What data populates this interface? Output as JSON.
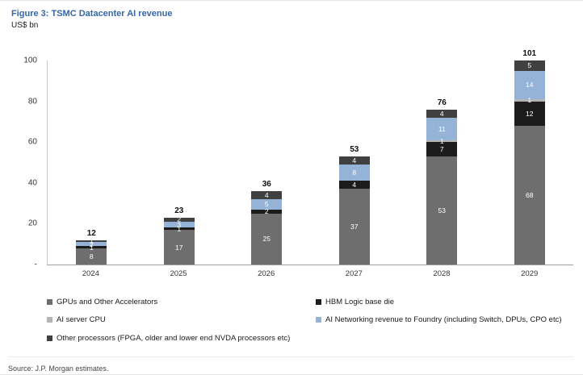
{
  "figure": {
    "title": "Figure 3: TSMC Datacenter AI revenue",
    "subtitle": "US$ bn",
    "source": "Source: J.P. Morgan estimates."
  },
  "chart_data": {
    "type": "bar",
    "stacked": true,
    "title": "Figure 3: TSMC Datacenter AI revenue",
    "ylabel": "US$ bn",
    "xlabel": "",
    "ylim": [
      0,
      100
    ],
    "grid": false,
    "legend_position": "bottom",
    "categories": [
      "2024",
      "2025",
      "2026",
      "2027",
      "2028",
      "2029"
    ],
    "series": [
      {
        "name": "GPUs and Other Accelerators",
        "color": "#6e6e6e",
        "values": [
          8,
          17,
          25,
          37,
          53,
          68
        ]
      },
      {
        "name": "HBM Logic base die",
        "color": "#1c1c1c",
        "values": [
          1,
          1,
          2,
          4,
          7,
          12
        ]
      },
      {
        "name": "AI server CPU",
        "color": "#b5b5b5",
        "values": [
          0,
          0,
          0,
          0,
          1,
          1
        ]
      },
      {
        "name": "AI Networking revenue to Foundry (including Switch, DPUs, CPO etc)",
        "color": "#95b3d7",
        "values": [
          2,
          3,
          5,
          8,
          11,
          14
        ]
      },
      {
        "name": "Other processors (FPGA, older and lower end NVDA processors etc)",
        "color": "#404040",
        "values": [
          1,
          2,
          4,
          4,
          4,
          5
        ]
      }
    ],
    "totals": [
      "12",
      "23",
      "36",
      "53",
      "76",
      "101"
    ],
    "yticks": [
      {
        "label": "-",
        "value": 0
      },
      {
        "label": "20",
        "value": 20
      },
      {
        "label": "40",
        "value": 40
      },
      {
        "label": "60",
        "value": 60
      },
      {
        "label": "80",
        "value": 80
      },
      {
        "label": "100",
        "value": 100
      }
    ],
    "legend_columns": {
      "left": [
        0,
        2,
        4
      ],
      "right": [
        1,
        3
      ]
    }
  }
}
